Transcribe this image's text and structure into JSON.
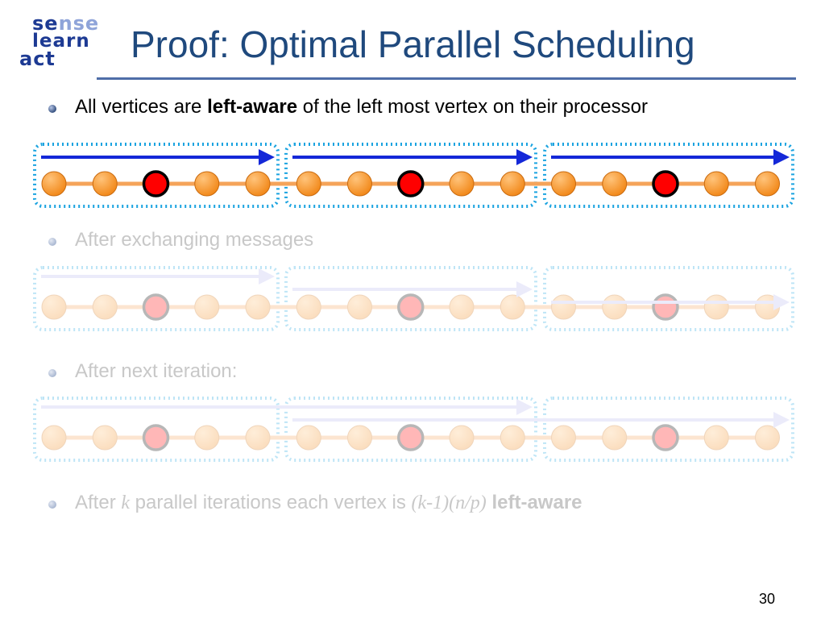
{
  "logo": {
    "line1_a": "se",
    "line1_b": "nse",
    "line2": "learn",
    "line3": "act"
  },
  "title": "Proof: Optimal Parallel Scheduling",
  "bullets": {
    "b1": {
      "pre": "All vertices are ",
      "bold": "left-aware",
      "post": " of the left most vertex on their processor"
    },
    "b2": {
      "text": "After exchanging messages"
    },
    "b3": {
      "text": "After next iteration:"
    },
    "b4": {
      "pre": "After ",
      "k": "k",
      "mid": " parallel iterations each vertex is ",
      "expr": "(k-1)(n/p)",
      "bold": " left-aware"
    }
  },
  "diagram": {
    "processors_per_row": 3,
    "vertices_per_processor": 5,
    "highlighted_vertex_index": 2,
    "colors": {
      "vertex": "#f28a1c",
      "vertex_highlight": "#ff0000",
      "edge": "#f5a45a",
      "box": "#1aa3e0",
      "arrow": "#1428d8",
      "arrow_faded": "#b9b9ee"
    },
    "rows": [
      {
        "state": "active",
        "arrows": [
          {
            "from_proc": 0,
            "to_proc": 0
          },
          {
            "from_proc": 1,
            "to_proc": 1
          },
          {
            "from_proc": 2,
            "to_proc": 2
          }
        ]
      },
      {
        "state": "faded",
        "arrows": [
          {
            "from_proc": 0,
            "to_proc": 0
          },
          {
            "from_proc": 1,
            "to_proc": 1
          },
          {
            "from_proc": 2,
            "to_proc": 2
          }
        ]
      },
      {
        "state": "faded",
        "arrows": [
          {
            "from_proc": 0,
            "to_proc": 1
          },
          {
            "from_proc": 1,
            "to_proc": 2
          }
        ]
      }
    ]
  },
  "page_number": "30"
}
